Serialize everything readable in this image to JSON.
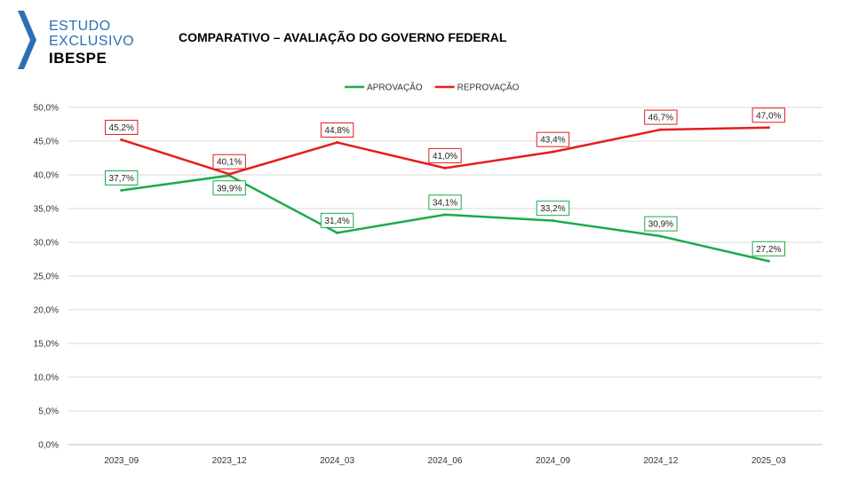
{
  "logo": {
    "line1": "ESTUDO",
    "line2": "EXCLUSIVO",
    "line3": "IBESPE",
    "accent_color": "#2c6fb5"
  },
  "header": {
    "title": "COMPARATIVO – AVALIAÇÃO DO GOVERNO FEDERAL"
  },
  "chart_data": {
    "type": "line",
    "title": "COMPARATIVO – AVALIAÇÃO DO GOVERNO FEDERAL",
    "xlabel": "",
    "ylabel": "",
    "categories": [
      "2023_09",
      "2023_12",
      "2024_03",
      "2024_06",
      "2024_09",
      "2024_12",
      "2025_03"
    ],
    "series": [
      {
        "name": "APROVAÇÃO",
        "color": "#1aab4b",
        "values": [
          37.7,
          39.9,
          31.4,
          34.1,
          33.2,
          30.9,
          27.2
        ],
        "labels": [
          "37,7%",
          "39,9%",
          "31,4%",
          "34,1%",
          "33,2%",
          "30,9%",
          "27,2%"
        ]
      },
      {
        "name": "REPROVAÇÃO",
        "color": "#e41e1e",
        "values": [
          45.2,
          40.1,
          44.8,
          41.0,
          43.4,
          46.7,
          47.0
        ],
        "labels": [
          "45,2%",
          "40,1%",
          "44,8%",
          "41,0%",
          "43,4%",
          "46,7%",
          "47,0%"
        ]
      }
    ],
    "ylim": [
      0,
      50
    ],
    "yticks": [
      "0,0%",
      "5,0%",
      "10,0%",
      "15,0%",
      "20,0%",
      "25,0%",
      "30,0%",
      "35,0%",
      "40,0%",
      "45,0%",
      "50,0%"
    ],
    "grid": true,
    "legend": "top-center"
  }
}
